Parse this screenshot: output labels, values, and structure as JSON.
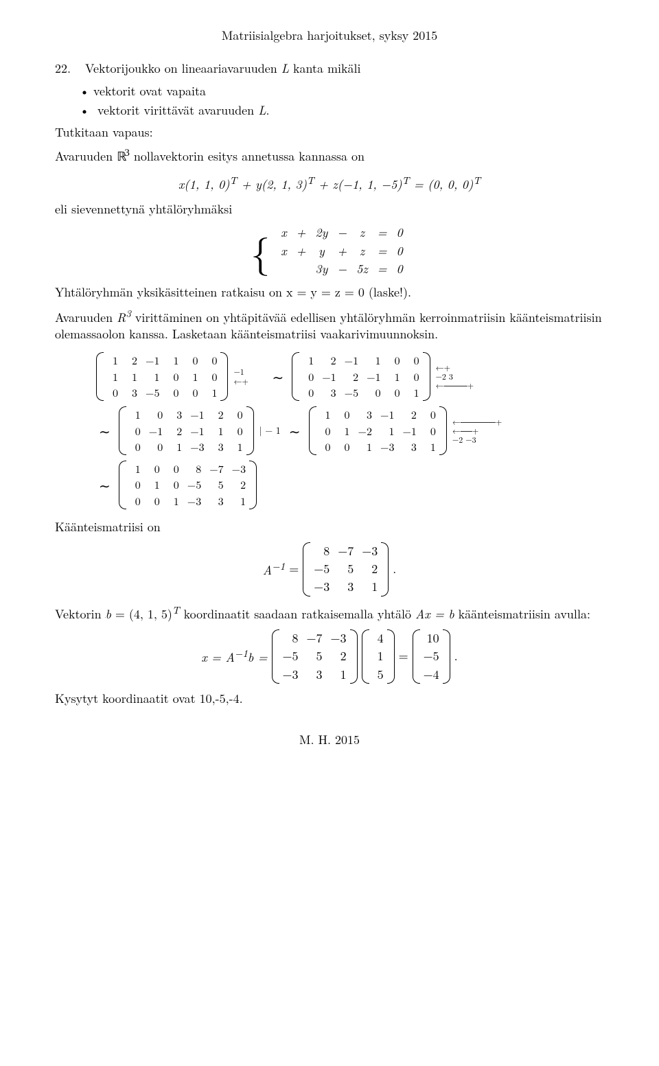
{
  "header": "Matriisialgebra harjoitukset, syksy 2015",
  "exercise_num": "22.",
  "exercise_text": "Vektorijoukko on lineaariavaruuden",
  "exercise_text2": "kanta mikäli",
  "bullet1": "vektorit ovat vapaita",
  "bullet2_a": "vektorit virittävät avaruuden",
  "intro_a": "Tutkitaan vapaus:",
  "intro_b_pre": "Avaruuden",
  "intro_b_post": "nollavektorin esitys annetussa kannassa on",
  "lin_comb_lhs": "x(1, 1, 0)",
  "lin_comb_mid1": " + y(2, 1, 3)",
  "lin_comb_mid2": " + z(−1, 1, −5)",
  "lin_comb_rhs": " = (0, 0, 0)",
  "sup_T": "T",
  "sievennys": "eli sievennettynä yhtälöryhmäksi",
  "sys": {
    "r1": [
      "x",
      "+",
      "2y",
      "−",
      "z",
      "=",
      "0"
    ],
    "r2": [
      "x",
      "+",
      "y",
      "+",
      "z",
      "=",
      "0"
    ],
    "r3": [
      "",
      "",
      "3y",
      "−",
      "5z",
      "=",
      "0"
    ]
  },
  "yksikasitteinen": "Yhtälöryhmän yksikäsitteinen ratkaisu on x = y = z = 0 (laske!).",
  "virittaminen_pre": "Avaruuden",
  "virittaminen_post": "virittäminen on yhtäpitävää edellisen yhtälöryhmän kerroinmatriisin käänteismatriisin olemassaolon kanssa. Lasketaan käänteismatriisi vaakarivimuunnoksin.",
  "matrices": {
    "m1": [
      [
        "1",
        "2",
        "−1",
        "1",
        "0",
        "0"
      ],
      [
        "1",
        "1",
        "1",
        "0",
        "1",
        "0"
      ],
      [
        "0",
        "3",
        "−5",
        "0",
        "0",
        "1"
      ]
    ],
    "ops1": [
      "−1",
      "←+",
      ""
    ],
    "m2": [
      [
        "1",
        "2",
        "−1",
        "1",
        "0",
        "0"
      ],
      [
        "0",
        "−1",
        "2",
        "−1",
        "1",
        "0"
      ],
      [
        "0",
        "3",
        "−5",
        "0",
        "0",
        "1"
      ]
    ],
    "ops2": [
      "←+",
      "−2  3",
      "←────+"
    ],
    "m3": [
      [
        "1",
        "0",
        "3",
        "−1",
        "2",
        "0"
      ],
      [
        "0",
        "−1",
        "2",
        "−1",
        "1",
        "0"
      ],
      [
        "0",
        "0",
        "1",
        "−3",
        "3",
        "1"
      ]
    ],
    "ops3_mid": "| − 1",
    "m4": [
      [
        "1",
        "0",
        "3",
        "−1",
        "2",
        "0"
      ],
      [
        "0",
        "1",
        "−2",
        "1",
        "−1",
        "0"
      ],
      [
        "0",
        "0",
        "1",
        "−3",
        "3",
        "1"
      ]
    ],
    "ops4": [
      "←──────+",
      "←──+",
      "−2    −3"
    ],
    "m5": [
      [
        "1",
        "0",
        "0",
        "8",
        "−7",
        "−3"
      ],
      [
        "0",
        "1",
        "0",
        "−5",
        "5",
        "2"
      ],
      [
        "0",
        "0",
        "1",
        "−3",
        "3",
        "1"
      ]
    ]
  },
  "kaanteis_on": "Käänteismatriisi on",
  "A_inv_label": "A",
  "A_inv_eq": " = ",
  "A_inv": [
    [
      "8",
      "−7",
      "−3"
    ],
    [
      "−5",
      "5",
      "2"
    ],
    [
      "−3",
      "3",
      "1"
    ]
  ],
  "dot": ".",
  "vektorin": "Vektorin",
  "b_eq": " = (4, 1, 5)",
  "koordinaatit": " koordinaatit saadaan ratkaisemalla yhtälö",
  "Ax_eq_b": " A x = b ",
  "avulla": "käänteismatriisin avulla:",
  "x_eq_label": "x = A",
  "x_eq_label2": "b = ",
  "b_vec": [
    [
      "4"
    ],
    [
      "1"
    ],
    [
      "5"
    ]
  ],
  "result_vec": [
    [
      "10"
    ],
    [
      "−5"
    ],
    [
      "−4"
    ]
  ],
  "kysytyt": "Kysytyt koordinaatit ovat 10,-5,-4.",
  "footer": "M. H.   2015",
  "L_var": "L",
  "R3": "ℝ",
  "sup3": "3",
  "R_var": "R",
  "tilde": "∼",
  "minus1_sup": "−1",
  "eq_sign": " = ",
  "b_underbar": "b",
  "x_underbar": "x"
}
